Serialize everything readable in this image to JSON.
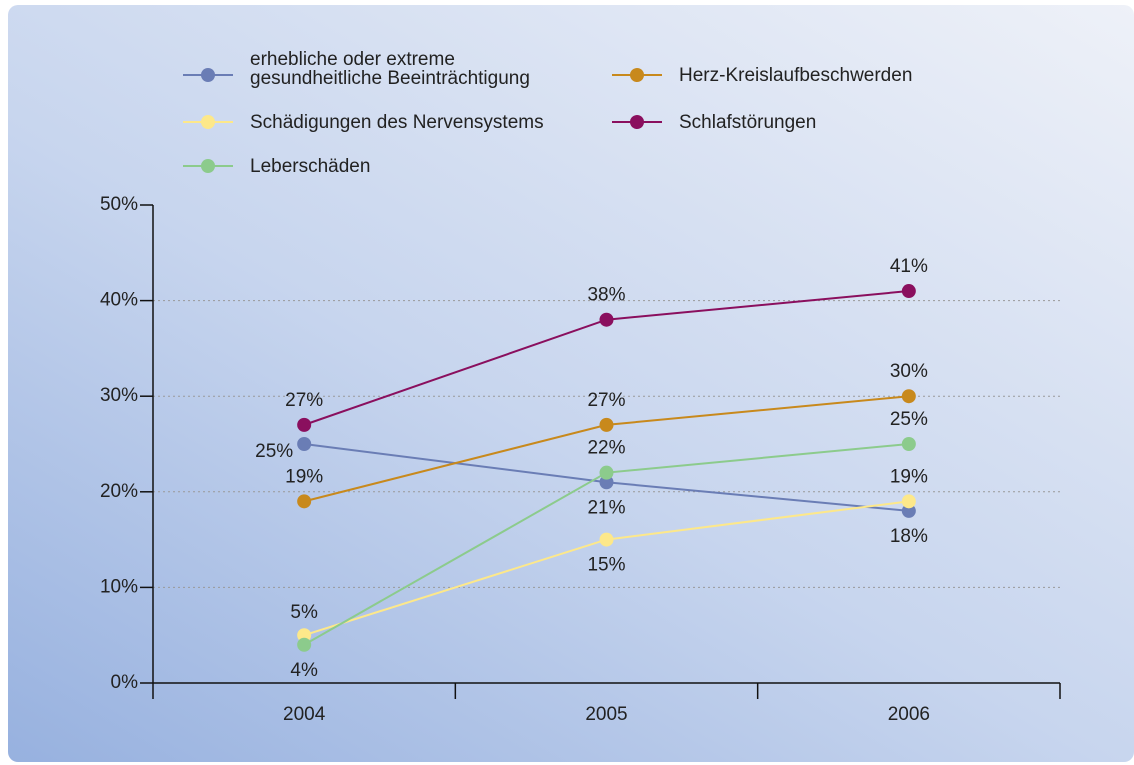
{
  "chart_data": {
    "type": "line",
    "categories": [
      "2004",
      "2005",
      "2006"
    ],
    "series": [
      {
        "name": "erhebliche oder extreme gesundheitliche Beeinträchtigung",
        "color": "#6a7db5",
        "values": [
          25,
          21,
          18
        ],
        "value_labels": [
          "25%",
          "21%",
          "18%"
        ]
      },
      {
        "name": "Herz-Kreislaufbeschwerden",
        "color": "#c8891c",
        "values": [
          19,
          27,
          30
        ],
        "value_labels": [
          "19%",
          "27%",
          "30%"
        ]
      },
      {
        "name": "Schädigungen des Nervensystems",
        "color": "#fde88a",
        "values": [
          5,
          15,
          19
        ],
        "value_labels": [
          "5%",
          "15%",
          "19%"
        ]
      },
      {
        "name": "Schlafstörungen",
        "color": "#8a0f5e",
        "values": [
          27,
          38,
          41
        ],
        "value_labels": [
          "27%",
          "38%",
          "41%"
        ]
      },
      {
        "name": "Leberschäden",
        "color": "#8ccb8c",
        "values": [
          4,
          22,
          25
        ],
        "value_labels": [
          "4%",
          "22%",
          "25%"
        ]
      }
    ],
    "ylim": [
      0,
      50
    ],
    "yticks": [
      {
        "value": 0,
        "label": "0%"
      },
      {
        "value": 10,
        "label": "10%"
      },
      {
        "value": 20,
        "label": "20%"
      },
      {
        "value": 30,
        "label": "30%"
      },
      {
        "value": 40,
        "label": "40%"
      },
      {
        "value": 50,
        "label": "50%"
      }
    ],
    "grid": true
  }
}
